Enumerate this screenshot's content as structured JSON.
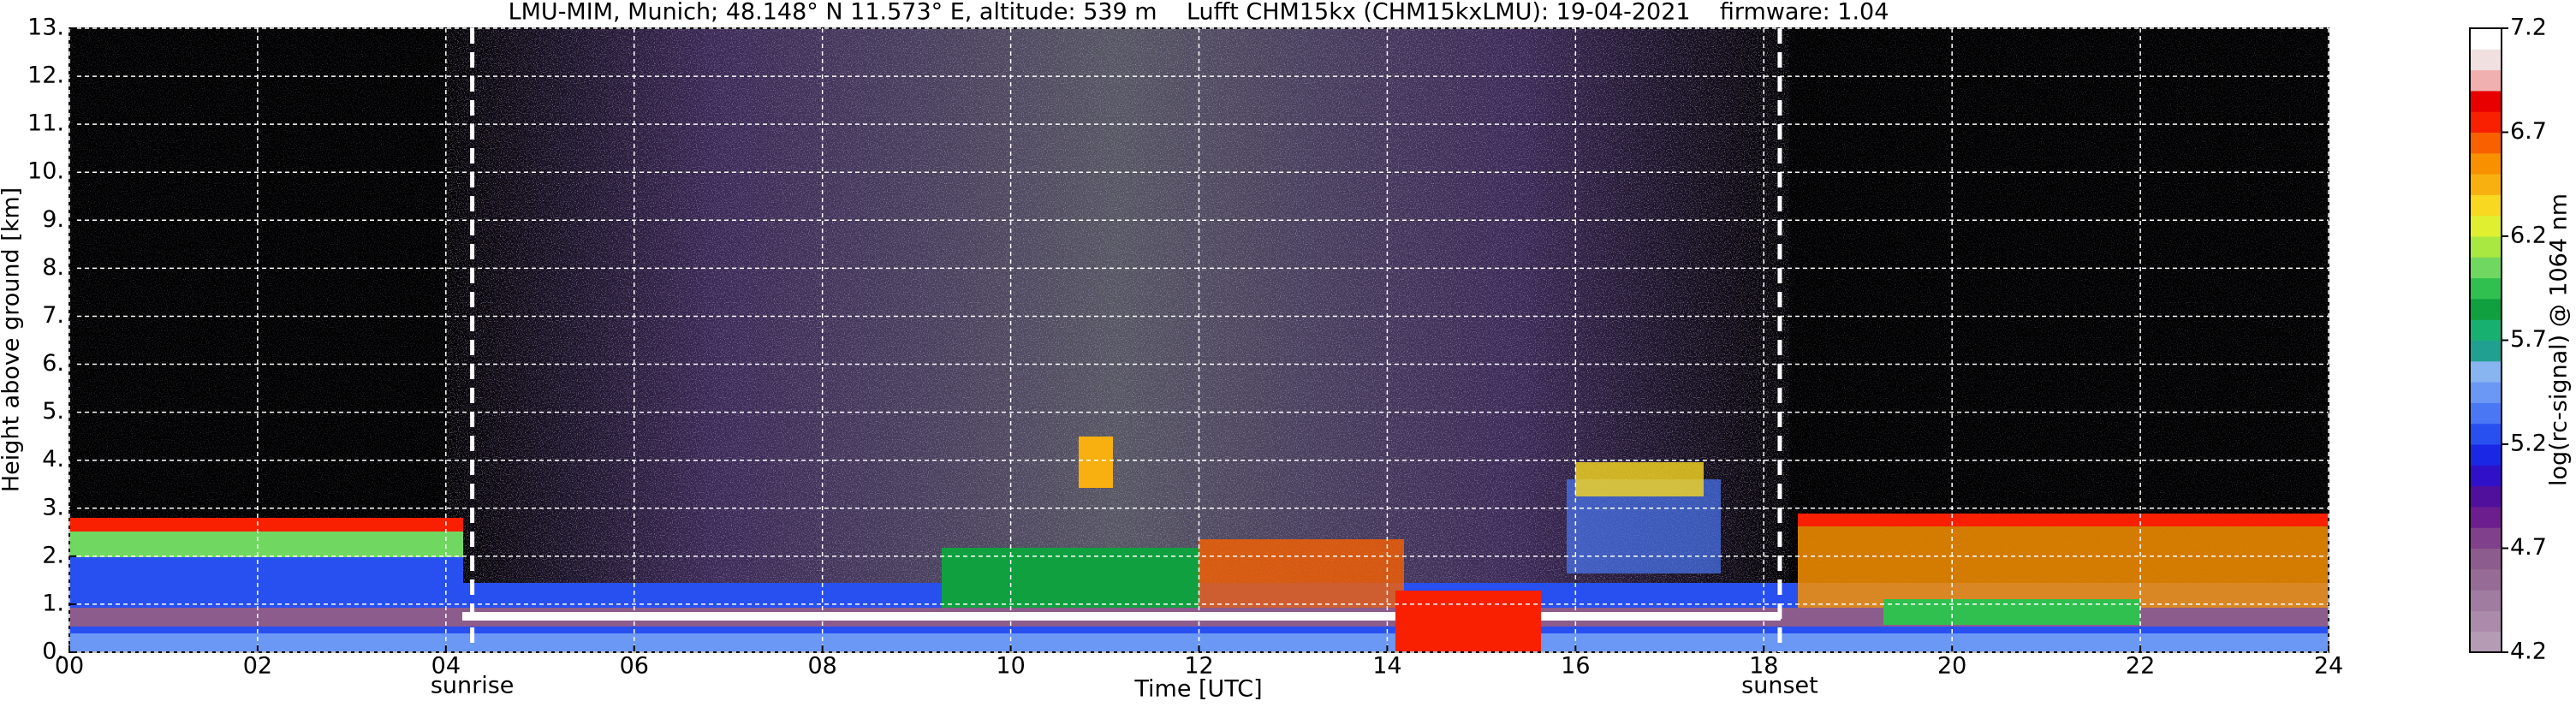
{
  "chart_data": {
    "type": "heatmap",
    "title": "LMU-MIM, Munich; 48.148° N 11.573° E, altitude: 539 m    Lufft CHM15kx (CHM15kxLMU): 19-04-2021    firmware: 1.04",
    "xlabel": "Time [UTC]",
    "ylabel": "Height above ground [km]",
    "xlim": [
      0,
      24
    ],
    "xticks": [
      {
        "value": 0,
        "label": "00"
      },
      {
        "value": 2,
        "label": "02"
      },
      {
        "value": 4,
        "label": "04"
      },
      {
        "value": 6,
        "label": "06"
      },
      {
        "value": 8,
        "label": "08"
      },
      {
        "value": 10,
        "label": "10"
      },
      {
        "value": 12,
        "label": "12"
      },
      {
        "value": 14,
        "label": "14"
      },
      {
        "value": 16,
        "label": "16"
      },
      {
        "value": 18,
        "label": "18"
      },
      {
        "value": 20,
        "label": "20"
      },
      {
        "value": 22,
        "label": "22"
      },
      {
        "value": 24,
        "label": "24"
      }
    ],
    "ylim": [
      0,
      13
    ],
    "yticks": [
      {
        "value": 0,
        "label": "0."
      },
      {
        "value": 1,
        "label": "1."
      },
      {
        "value": 2,
        "label": "2."
      },
      {
        "value": 3,
        "label": "3."
      },
      {
        "value": 4,
        "label": "4."
      },
      {
        "value": 5,
        "label": "5."
      },
      {
        "value": 6,
        "label": "6."
      },
      {
        "value": 7,
        "label": "7."
      },
      {
        "value": 8,
        "label": "8."
      },
      {
        "value": 9,
        "label": "9."
      },
      {
        "value": 10,
        "label": "10."
      },
      {
        "value": 11,
        "label": "11."
      },
      {
        "value": 12,
        "label": "12."
      },
      {
        "value": 13,
        "label": "13."
      }
    ],
    "grid": true,
    "events": [
      {
        "x": 4.28,
        "label": "sunrise"
      },
      {
        "x": 18.17,
        "label": "sunset"
      }
    ],
    "colorbar": {
      "label": "log(rc-signal) @ 1064 nm",
      "lim": [
        4.2,
        7.2
      ],
      "ticks": [
        4.2,
        4.7,
        5.2,
        5.7,
        6.2,
        6.7,
        7.2
      ],
      "colors": [
        "#b49cb4",
        "#aa8caa",
        "#a07ca0",
        "#966c96",
        "#8c5c8c",
        "#80408c",
        "#6c1e8e",
        "#50109c",
        "#3010c8",
        "#1a28e6",
        "#2850f0",
        "#4a78f4",
        "#6a98f4",
        "#88b4f0",
        "#20a090",
        "#18b070",
        "#10a040",
        "#30c050",
        "#70d860",
        "#a8e840",
        "#e0f030",
        "#f8d820",
        "#f8b010",
        "#f89000",
        "#f86000",
        "#f82000",
        "#e80000",
        "#f0b0b0",
        "#f0e0e0",
        "#ffffff"
      ]
    }
  }
}
